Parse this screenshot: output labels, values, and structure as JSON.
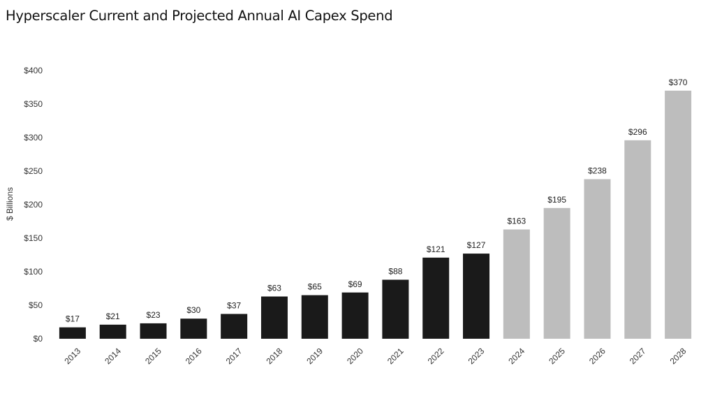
{
  "chart_data": {
    "type": "bar",
    "title": "Hyperscaler Current and Projected Annual AI Capex Spend",
    "xlabel": "",
    "ylabel": "$ Billions",
    "ylim": [
      0,
      400
    ],
    "ytick_values": [
      0,
      50,
      100,
      150,
      200,
      250,
      300,
      350,
      400
    ],
    "ytick_labels": [
      "$0",
      "$50",
      "$100",
      "$150",
      "$200",
      "$250",
      "$300",
      "$350",
      "$400"
    ],
    "categories": [
      "2013",
      "2014",
      "2015",
      "2016",
      "2017",
      "2018",
      "2019",
      "2020",
      "2021",
      "2022",
      "2023",
      "2024",
      "2025",
      "2026",
      "2027",
      "2028"
    ],
    "values": [
      17,
      21,
      23,
      30,
      37,
      63,
      65,
      69,
      88,
      121,
      127,
      163,
      195,
      238,
      296,
      370
    ],
    "data_labels": [
      "$17",
      "$21",
      "$23",
      "$30",
      "$37",
      "$63",
      "$65",
      "$69",
      "$88",
      "$121",
      "$127",
      "$163",
      "$195",
      "$238",
      "$296",
      "$370"
    ],
    "bar_colors": [
      "#1a1a1a",
      "#1a1a1a",
      "#1a1a1a",
      "#1a1a1a",
      "#1a1a1a",
      "#1a1a1a",
      "#1a1a1a",
      "#1a1a1a",
      "#1a1a1a",
      "#1a1a1a",
      "#1a1a1a",
      "#bdbdbd",
      "#bdbdbd",
      "#bdbdbd",
      "#bdbdbd",
      "#bdbdbd"
    ],
    "grid": false,
    "legend": "none"
  }
}
